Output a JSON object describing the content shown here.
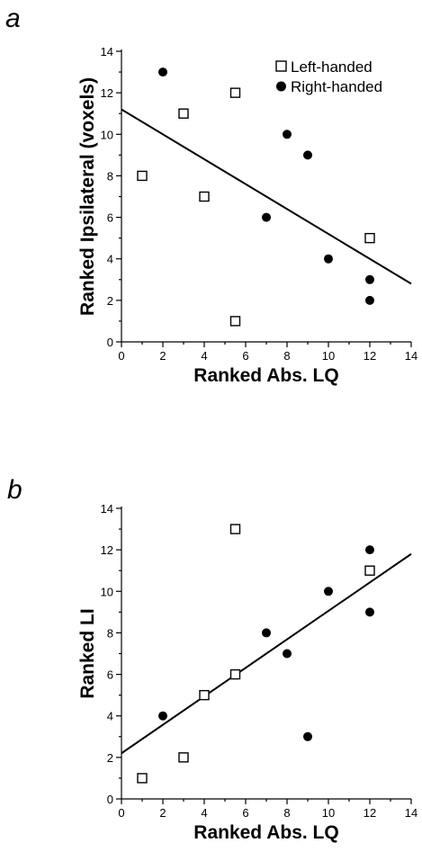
{
  "chart_data": [
    {
      "type": "scatter",
      "panel_label": "a",
      "xlabel": "Ranked Abs. LQ",
      "ylabel": "Ranked Ipsilateral (voxels)",
      "xlim": [
        0,
        14
      ],
      "ylim": [
        0,
        14
      ],
      "xticks": [
        0,
        2,
        4,
        6,
        8,
        10,
        12,
        14
      ],
      "yticks": [
        0,
        2,
        4,
        6,
        8,
        10,
        12,
        14
      ],
      "legend": {
        "placement": "top-right",
        "entries": [
          {
            "label": "Left-handed",
            "marker": "open-square"
          },
          {
            "label": "Right-handed",
            "marker": "filled-circle"
          }
        ]
      },
      "series": [
        {
          "name": "Left-handed",
          "marker": "open-square",
          "points": [
            [
              1,
              8
            ],
            [
              3,
              11
            ],
            [
              4,
              7
            ],
            [
              5.5,
              12
            ],
            [
              5.5,
              1
            ],
            [
              12,
              5
            ]
          ]
        },
        {
          "name": "Right-handed",
          "marker": "filled-circle",
          "points": [
            [
              2,
              13
            ],
            [
              7,
              6
            ],
            [
              8,
              10
            ],
            [
              9,
              9
            ],
            [
              10,
              4
            ],
            [
              12,
              3
            ],
            [
              12,
              2
            ]
          ]
        }
      ],
      "fit_line": [
        [
          0,
          11.2
        ],
        [
          14,
          2.8
        ]
      ]
    },
    {
      "type": "scatter",
      "panel_label": "b",
      "xlabel": "Ranked Abs. LQ",
      "ylabel": "Ranked LI",
      "xlim": [
        0,
        14
      ],
      "ylim": [
        0,
        14
      ],
      "xticks": [
        0,
        2,
        4,
        6,
        8,
        10,
        12,
        14
      ],
      "yticks": [
        0,
        2,
        4,
        6,
        8,
        10,
        12,
        14
      ],
      "series": [
        {
          "name": "Left-handed",
          "marker": "open-square",
          "points": [
            [
              1,
              1
            ],
            [
              3,
              2
            ],
            [
              4,
              5
            ],
            [
              5.5,
              6
            ],
            [
              5.5,
              13
            ],
            [
              12,
              11
            ]
          ]
        },
        {
          "name": "Right-handed",
          "marker": "filled-circle",
          "points": [
            [
              2,
              4
            ],
            [
              7,
              8
            ],
            [
              8,
              7
            ],
            [
              9,
              3
            ],
            [
              10,
              10
            ],
            [
              12,
              12
            ],
            [
              12,
              9
            ]
          ]
        }
      ],
      "fit_line": [
        [
          0,
          2.2
        ],
        [
          14,
          11.8
        ]
      ]
    }
  ]
}
